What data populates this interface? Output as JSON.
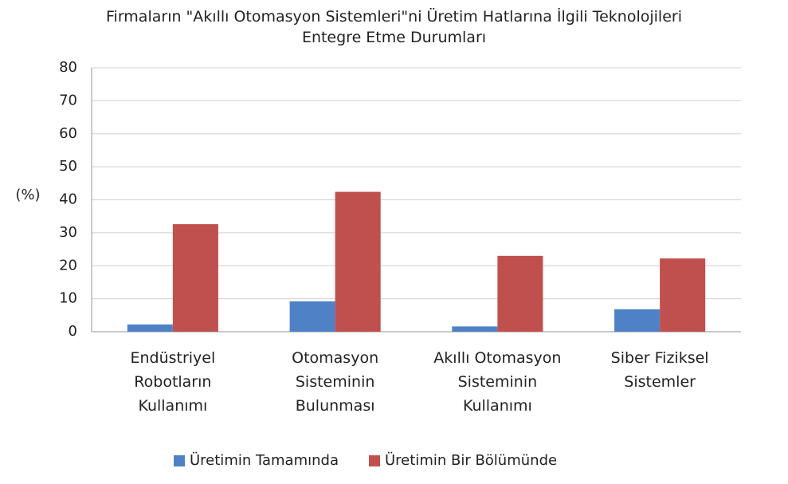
{
  "chart_data": {
    "type": "bar",
    "title": "Firmaların  \"Akıllı Otomasyon Sistemleri\"ni Üretim Hatlarına İlgili Teknolojileri\nEntegre Etme Durumları",
    "y_label": "(%)",
    "categories": [
      "Endüstriyel\nRobotların\nKullanımı",
      "Otomasyon\nSisteminin\nBulunması",
      "Akıllı Otomasyon\nSisteminin\nKullanımı",
      "Siber Fiziksel\nSistemler"
    ],
    "series": [
      {
        "name": "Üretimin Tamamında",
        "color": "#4f81c6",
        "values": [
          2.2,
          9.2,
          1.6,
          6.8
        ]
      },
      {
        "name": "Üretimin Bir Bölümünde",
        "color": "#c0504d",
        "values": [
          32.6,
          42.4,
          23,
          22.2
        ]
      }
    ],
    "ylim": [
      0,
      80
    ],
    "yticks": [
      0,
      10,
      20,
      30,
      40,
      50,
      60,
      70,
      80
    ],
    "grid": true,
    "legend": "bottom"
  }
}
